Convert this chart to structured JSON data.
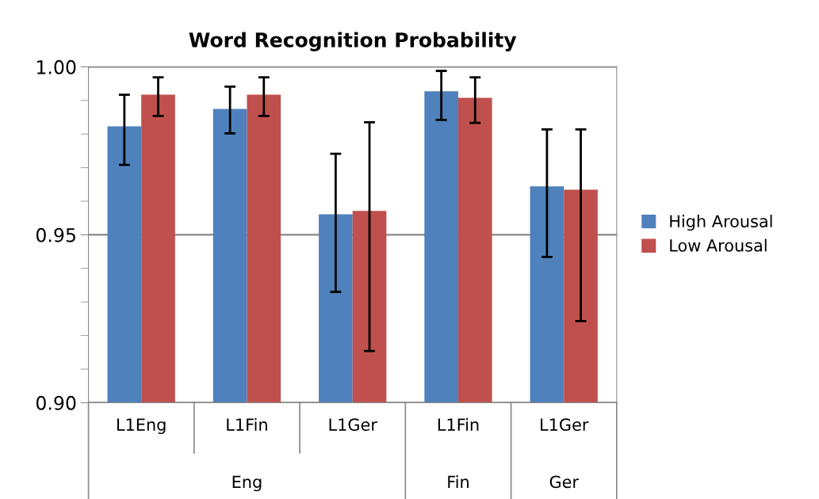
{
  "chart_data": {
    "type": "bar",
    "title": "Word Recognition Probability",
    "categories": [
      "L1Eng",
      "L1Fin",
      "L1Ger",
      "L1Fin",
      "L1Ger"
    ],
    "series": [
      {
        "name": "High Arousal",
        "color": "#4f81bd",
        "values": [
          0.9823,
          0.9875,
          0.9561,
          0.9927,
          0.9644
        ],
        "errors": [
          [
            0.9708,
            0.9917
          ],
          [
            0.9802,
            0.9941
          ],
          [
            0.933,
            0.9741
          ],
          [
            0.9842,
            0.9988
          ],
          [
            0.9434,
            0.9814
          ]
        ]
      },
      {
        "name": "Low Arousal",
        "color": "#c0504d",
        "values": [
          0.9917,
          0.9917,
          0.9571,
          0.9908,
          0.9634
        ],
        "errors": [
          [
            0.9854,
            0.9969
          ],
          [
            0.9854,
            0.9969
          ],
          [
            0.9154,
            0.9835
          ],
          [
            0.9833,
            0.9969
          ],
          [
            0.9243,
            0.9814
          ]
        ]
      }
    ],
    "annotations": [
      "Eng",
      "Fin",
      "Ger"
    ],
    "ylim": [
      0.9,
      1.0
    ],
    "yticks": [
      {
        "value": 0.9,
        "label": "0.90"
      },
      {
        "value": 0.91,
        "label": null
      },
      {
        "value": 0.92,
        "label": null
      },
      {
        "value": 0.93,
        "label": null
      },
      {
        "value": 0.94,
        "label": null
      },
      {
        "value": 0.95,
        "label": "0.95"
      },
      {
        "value": 0.96,
        "label": null
      },
      {
        "value": 0.97,
        "label": null
      },
      {
        "value": 0.98,
        "label": null
      },
      {
        "value": 0.99,
        "label": null
      },
      {
        "value": 1.0,
        "label": "1.00"
      }
    ],
    "grid": "y",
    "legend": "right"
  }
}
